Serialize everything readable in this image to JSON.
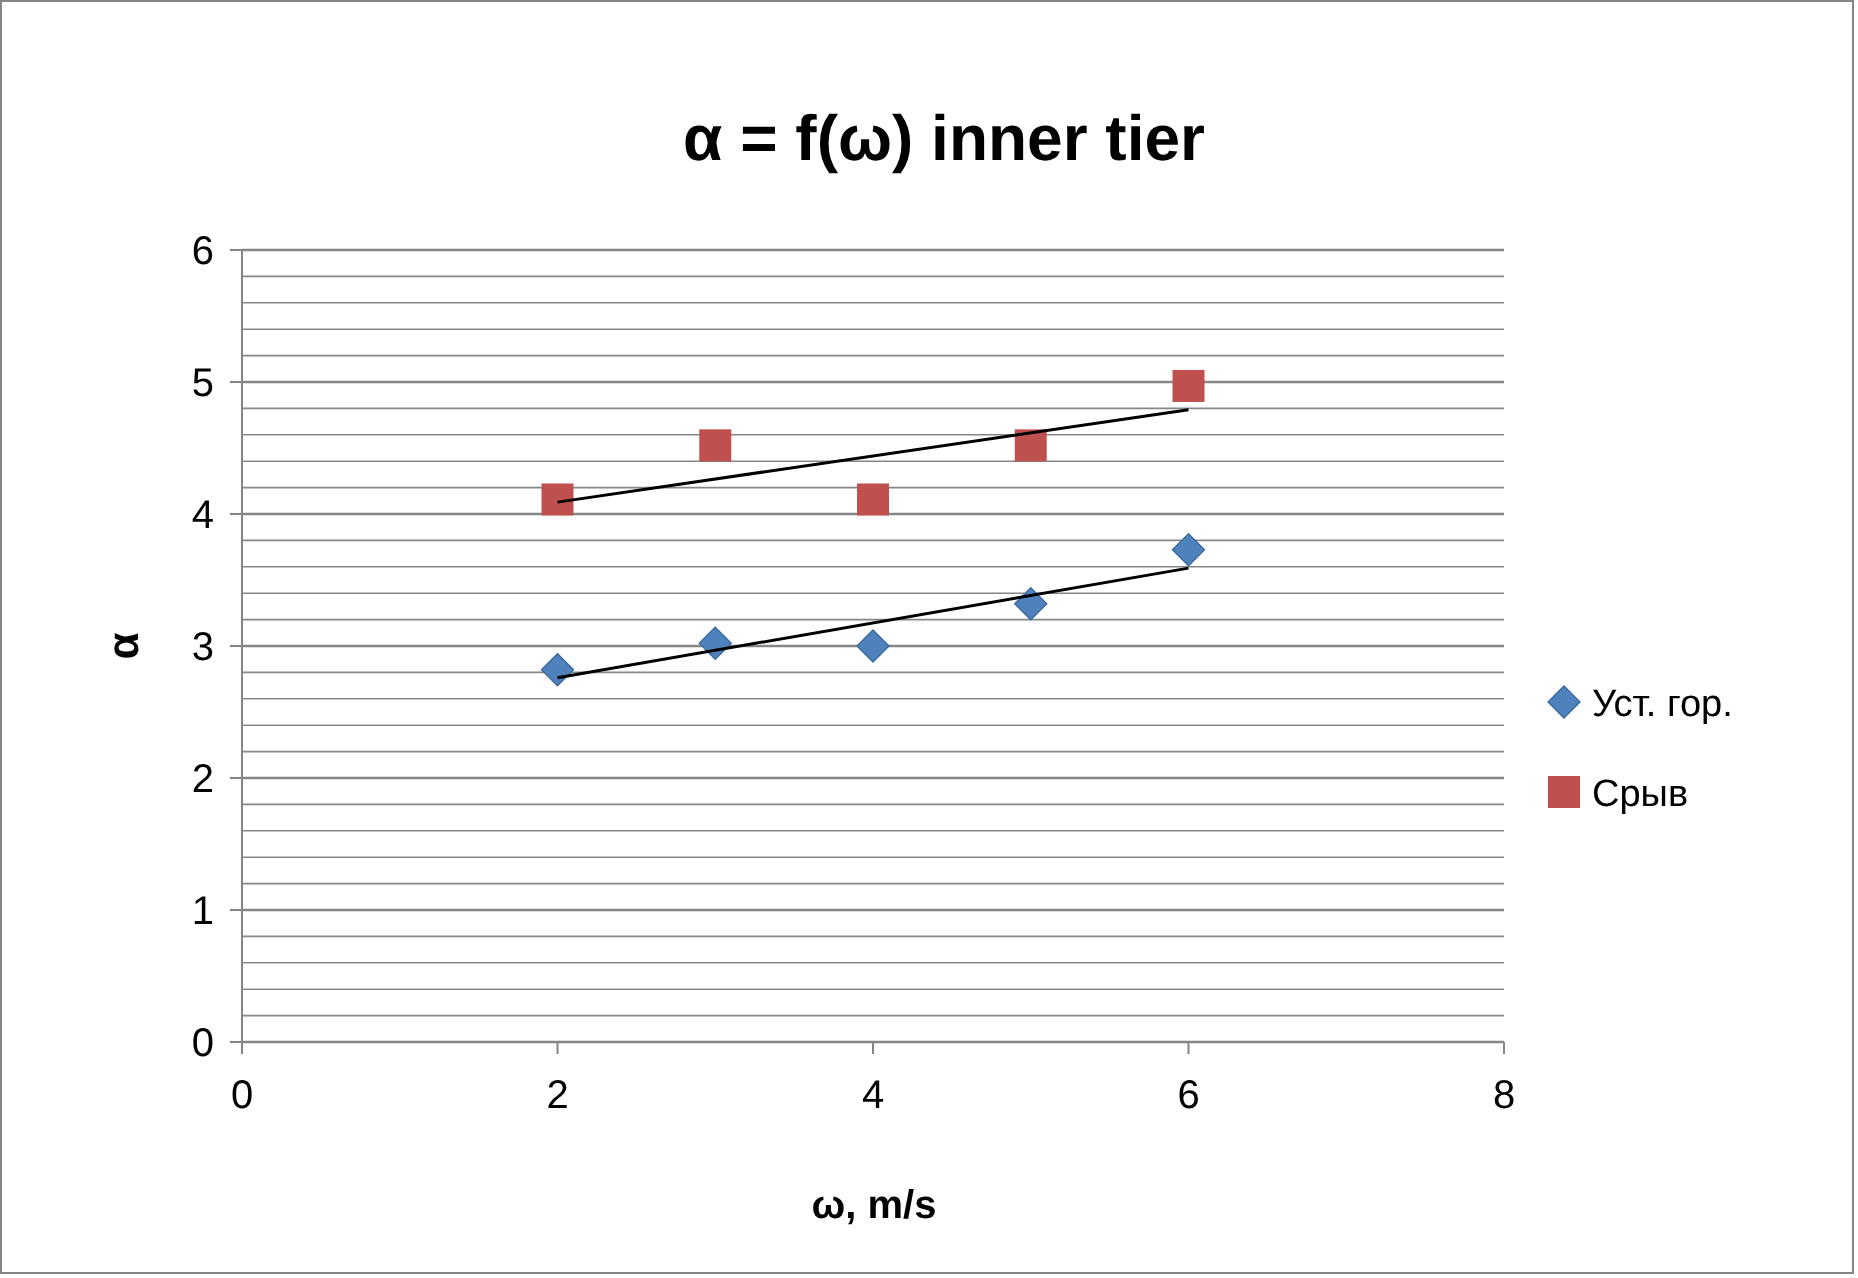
{
  "chart_data": {
    "type": "scatter",
    "title": "α = f(ω) inner tier",
    "xlabel": "ω, m/s",
    "ylabel": "α",
    "xlim": [
      0,
      8
    ],
    "xticks": [
      0,
      2,
      4,
      6,
      8
    ],
    "ylim": [
      0,
      6
    ],
    "yticks": [
      0,
      {
        "value": 0.2,
        "label": null
      },
      {
        "value": 0.4,
        "label": null
      },
      {
        "value": 0.6,
        "label": null
      },
      {
        "value": 0.8,
        "label": null
      },
      1,
      {
        "value": 1.2,
        "label": null
      },
      {
        "value": 1.4,
        "label": null
      },
      {
        "value": 1.6,
        "label": null
      },
      {
        "value": 1.8,
        "label": null
      },
      2,
      {
        "value": 2.2,
        "label": null
      },
      {
        "value": 2.4,
        "label": null
      },
      {
        "value": 2.6,
        "label": null
      },
      {
        "value": 2.8,
        "label": null
      },
      3,
      {
        "value": 3.2,
        "label": null
      },
      {
        "value": 3.4,
        "label": null
      },
      {
        "value": 3.6,
        "label": null
      },
      {
        "value": 3.8,
        "label": null
      },
      4,
      {
        "value": 4.2,
        "label": null
      },
      {
        "value": 4.4,
        "label": null
      },
      {
        "value": 4.6,
        "label": null
      },
      {
        "value": 4.8,
        "label": null
      },
      5,
      {
        "value": 5.2,
        "label": null
      },
      {
        "value": 5.4,
        "label": null
      },
      {
        "value": 5.6,
        "label": null
      },
      {
        "value": 5.8,
        "label": null
      },
      6
    ],
    "grid": "y",
    "legend": "right",
    "series": [
      {
        "name": "Уст. гор.",
        "color": "#4f81bd",
        "marker": "diamond",
        "x": [
          2,
          3,
          4,
          5,
          6
        ],
        "values": [
          2.82,
          3.02,
          3.0,
          3.32,
          3.73
        ]
      },
      {
        "name": "Срыв",
        "color": "#c0504d",
        "marker": "square",
        "x": [
          2,
          3,
          4,
          5,
          6
        ],
        "values": [
          4.11,
          4.52,
          4.11,
          4.52,
          4.97
        ]
      },
      {
        "type": "line",
        "color": "#000000",
        "marker": "none",
        "x": [
          2,
          6
        ],
        "values": [
          2.76,
          3.59
        ]
      },
      {
        "type": "line",
        "color": "#000000",
        "marker": "none",
        "x": [
          2,
          6
        ],
        "values": [
          4.09,
          4.79
        ]
      }
    ]
  }
}
